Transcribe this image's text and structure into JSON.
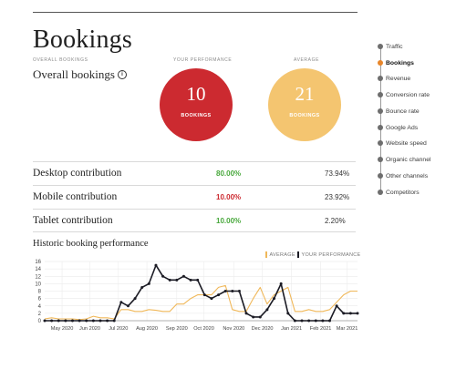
{
  "page": {
    "title": "Bookings",
    "overlines": {
      "left": "OVERALL BOOKINGS",
      "mid": "YOUR PERFORMANCE",
      "right": "AVERAGE"
    },
    "subtitle": "Overall bookings",
    "info_icon": "i"
  },
  "circles": {
    "you": {
      "value": "10",
      "label": "BOOKINGS",
      "color": "#cc2a30"
    },
    "avg": {
      "value": "21",
      "label": "BOOKINGS",
      "color": "#f4c570"
    }
  },
  "contributions": [
    {
      "label": "Desktop contribution",
      "you": "80.00%",
      "avg": "73.94%",
      "status": "good"
    },
    {
      "label": "Mobile contribution",
      "you": "10.00%",
      "avg": "23.92%",
      "status": "bad"
    },
    {
      "label": "Tablet contribution",
      "you": "10.00%",
      "avg": "2.20%",
      "status": "good"
    }
  ],
  "nav": {
    "items": [
      {
        "label": "Traffic",
        "active": false
      },
      {
        "label": "Bookings",
        "active": true
      },
      {
        "label": "Revenue",
        "active": false
      },
      {
        "label": "Conversion rate",
        "active": false
      },
      {
        "label": "Bounce rate",
        "active": false
      },
      {
        "label": "Google Ads",
        "active": false
      },
      {
        "label": "Website speed",
        "active": false
      },
      {
        "label": "Organic channel",
        "active": false
      },
      {
        "label": "Other channels",
        "active": false
      },
      {
        "label": "Competitors",
        "active": false
      }
    ]
  },
  "chart": {
    "title": "Historic booking performance",
    "legend_avg": "AVERAGE",
    "legend_you": "YOUR PERFORMANCE"
  },
  "chart_data": {
    "type": "line",
    "title": "Historic booking performance",
    "ylim": [
      0,
      16
    ],
    "yticks": [
      0,
      2,
      4,
      6,
      8,
      10,
      12,
      14,
      16
    ],
    "xlim": [
      0,
      45
    ],
    "xticks": [
      {
        "x": 2.5,
        "label": "May 2020"
      },
      {
        "x": 6.5,
        "label": "Jun 2020"
      },
      {
        "x": 10.6,
        "label": "Jul 2020"
      },
      {
        "x": 14.7,
        "label": "Aug 2020"
      },
      {
        "x": 19.0,
        "label": "Sep 2020"
      },
      {
        "x": 22.9,
        "label": "Oct 2020"
      },
      {
        "x": 27.2,
        "label": "Nov 2020"
      },
      {
        "x": 31.3,
        "label": "Dec 2020"
      },
      {
        "x": 35.5,
        "label": "Jan 2021"
      },
      {
        "x": 39.7,
        "label": "Feb 2021"
      },
      {
        "x": 43.5,
        "label": "Mar 2021"
      }
    ],
    "grid": true,
    "series": [
      {
        "name": "AVERAGE",
        "color": "#f0b85a",
        "markers": false,
        "values": [
          0.5,
          0.8,
          0.5,
          0.5,
          0.5,
          0.3,
          0.5,
          1.2,
          0.8,
          0.8,
          0.5,
          3,
          3,
          2.5,
          2.5,
          3,
          2.8,
          2.5,
          2.5,
          4.5,
          4.5,
          6,
          7,
          7,
          7,
          9,
          9.5,
          3,
          2.5,
          2.5,
          6,
          9,
          4.5,
          7,
          8,
          9,
          2.5,
          2.5,
          3,
          2.5,
          2.5,
          3,
          5,
          7,
          8,
          8
        ]
      },
      {
        "name": "YOUR PERFORMANCE",
        "color": "#1b1b24",
        "markers": true,
        "values": [
          0,
          0,
          0,
          0,
          0,
          0,
          0,
          0,
          0,
          0,
          0,
          5,
          4,
          6,
          9,
          10,
          15,
          12,
          11,
          11,
          12,
          11,
          11,
          7,
          6,
          7,
          8,
          8,
          8,
          2,
          1,
          1,
          3,
          6,
          10,
          2,
          0,
          0,
          0,
          0,
          0,
          0,
          4,
          2,
          2,
          2
        ]
      }
    ]
  }
}
